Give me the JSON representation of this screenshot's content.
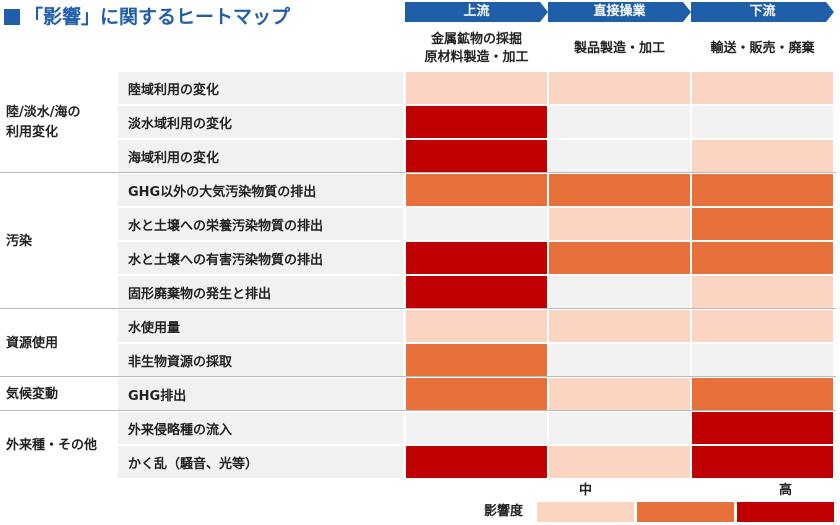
{
  "title": "「影響」に関するヒートマップ",
  "columns": [
    {
      "stage": "上流",
      "label_lines": [
        "金属鉱物の採掘",
        "原材料製造・加工"
      ]
    },
    {
      "stage": "直接操業",
      "label_lines": [
        "製品製造・加工"
      ]
    },
    {
      "stage": "下流",
      "label_lines": [
        "輸送・販売・廃棄"
      ]
    }
  ],
  "groups": [
    {
      "label_lines": [
        "陸/淡水/海の",
        "利用変化"
      ],
      "rows": [
        {
          "label": "陸域利用の変化",
          "colors": [
            "#fcd5c2",
            "#fcd5c2",
            "#fcd5c2"
          ]
        },
        {
          "label": "淡水域利用の変化",
          "colors": [
            "#c00000",
            "#f2f2f2",
            "#f2f2f2"
          ]
        },
        {
          "label": "海域利用の変化",
          "colors": [
            "#c00000",
            "#f2f2f2",
            "#fcd5c2"
          ]
        }
      ]
    },
    {
      "label_lines": [
        "汚染"
      ],
      "rows": [
        {
          "label": "GHG以外の大気汚染物質の排出",
          "colors": [
            "#e8703a",
            "#e8703a",
            "#e8703a"
          ]
        },
        {
          "label": "水と土壌への栄養汚染物質の排出",
          "colors": [
            "#f2f2f2",
            "#fcd5c2",
            "#e8703a"
          ]
        },
        {
          "label": "水と土壌への有害汚染物質の排出",
          "colors": [
            "#c00000",
            "#e8703a",
            "#e8703a"
          ]
        },
        {
          "label": "固形廃棄物の発生と排出",
          "colors": [
            "#c00000",
            "#f2f2f2",
            "#fcd5c2"
          ]
        }
      ]
    },
    {
      "label_lines": [
        "資源使用"
      ],
      "rows": [
        {
          "label": "水使用量",
          "colors": [
            "#fcd5c2",
            "#fcd5c2",
            "#fcd5c2"
          ]
        },
        {
          "label": "非生物資源の採取",
          "colors": [
            "#e8703a",
            "#f2f2f2",
            "#f2f2f2"
          ]
        }
      ]
    },
    {
      "label_lines": [
        "気候変動"
      ],
      "rows": [
        {
          "label": "GHG排出",
          "colors": [
            "#e8703a",
            "#fcd5c2",
            "#e8703a"
          ]
        }
      ]
    },
    {
      "label_lines": [
        "外来種・その他"
      ],
      "rows": [
        {
          "label": "外来侵略種の流入",
          "colors": [
            "#f2f2f2",
            "#f2f2f2",
            "#c00000"
          ]
        },
        {
          "label": "かく乱（騒音、光等）",
          "colors": [
            "#c00000",
            "#fcd5c2",
            "#c00000"
          ]
        }
      ]
    }
  ],
  "legend": {
    "title": "影響度",
    "items": [
      {
        "color": "#fcd5c2",
        "label": "中"
      },
      {
        "color": "#e8703a"
      },
      {
        "color": "#c00000",
        "label": "高"
      }
    ]
  }
}
